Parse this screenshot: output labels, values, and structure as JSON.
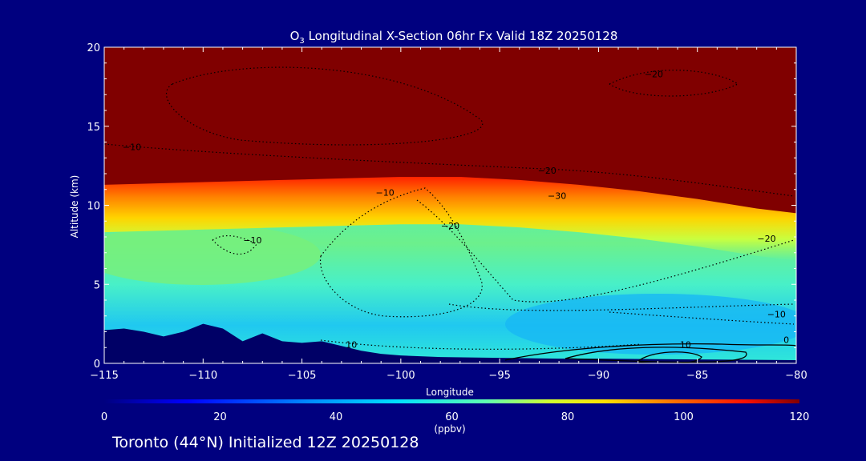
{
  "chart_data": {
    "type": "heatmap",
    "title_prefix": "O",
    "title_subscript": "3",
    "title_suffix": " Longitudinal X-Section 06hr  Fx Valid 18Z 20250128",
    "xlabel": "Longitude",
    "ylabel": "Altitude (km)",
    "xlim": [
      -115,
      -80
    ],
    "ylim": [
      0,
      20
    ],
    "x_ticks": [
      -115,
      -110,
      -105,
      -100,
      -95,
      -90,
      -85,
      -80
    ],
    "x_tick_labels": [
      "−115",
      "−110",
      "−105",
      "−100",
      "−95",
      "−90",
      "−85",
      "−80"
    ],
    "y_ticks": [
      0,
      5,
      10,
      15,
      20
    ],
    "y_tick_labels": [
      "0",
      "5",
      "10",
      "15",
      "20"
    ],
    "colorbar": {
      "label": "(ppbv)",
      "range": [
        0,
        120
      ],
      "ticks": [
        0,
        20,
        40,
        60,
        80,
        100,
        120
      ],
      "tick_labels": [
        "0",
        "20",
        "40",
        "60",
        "80",
        "100",
        "120"
      ]
    },
    "tropopause_km": [
      [
        -115,
        11.3
      ],
      [
        -112,
        11.4
      ],
      [
        -109,
        11.5
      ],
      [
        -106,
        11.6
      ],
      [
        -103,
        11.7
      ],
      [
        -100,
        11.8
      ],
      [
        -97,
        11.8
      ],
      [
        -94,
        11.6
      ],
      [
        -91,
        11.3
      ],
      [
        -88,
        10.9
      ],
      [
        -85,
        10.4
      ],
      [
        -82,
        9.8
      ],
      [
        -80,
        9.5
      ]
    ],
    "terrain_km": [
      [
        -115,
        2.1
      ],
      [
        -114,
        2.2
      ],
      [
        -113,
        2.0
      ],
      [
        -112,
        1.7
      ],
      [
        -111,
        2.0
      ],
      [
        -110,
        2.5
      ],
      [
        -109,
        2.2
      ],
      [
        -108,
        1.4
      ],
      [
        -107,
        1.9
      ],
      [
        -106,
        1.4
      ],
      [
        -105,
        1.3
      ],
      [
        -104,
        1.4
      ],
      [
        -103,
        1.1
      ],
      [
        -102,
        0.8
      ],
      [
        -101,
        0.6
      ],
      [
        -100,
        0.5
      ],
      [
        -98,
        0.4
      ],
      [
        -95,
        0.35
      ],
      [
        -92,
        0.3
      ],
      [
        -90,
        0.3
      ],
      [
        -85,
        0.25
      ],
      [
        -80,
        0.2
      ]
    ],
    "tropospheric_ozone_ppbv": [
      {
        "lon": -115,
        "alt": 7,
        "value": 48
      },
      {
        "lon": -110,
        "alt": 7,
        "value": 48
      },
      {
        "lon": -100,
        "alt": 6,
        "value": 44
      },
      {
        "lon": -90,
        "alt": 6,
        "value": 44
      },
      {
        "lon": -82,
        "alt": 3,
        "value": 38
      }
    ],
    "contour_labels": [
      {
        "text": "−10",
        "lon": -113.6,
        "alt": 13.5
      },
      {
        "text": "−20",
        "lon": -87.2,
        "alt": 18.1
      },
      {
        "text": "−20",
        "lon": -92.6,
        "alt": 12.0
      },
      {
        "text": "−30",
        "lon": -92.1,
        "alt": 10.4
      },
      {
        "text": "−10",
        "lon": -100.8,
        "alt": 10.6
      },
      {
        "text": "−20",
        "lon": -97.5,
        "alt": 8.5
      },
      {
        "text": "−10",
        "lon": -107.5,
        "alt": 7.6
      },
      {
        "text": "−20",
        "lon": -81.5,
        "alt": 7.7
      },
      {
        "text": "−10",
        "lon": -81.0,
        "alt": 2.9
      },
      {
        "text": "0",
        "lon": -80.5,
        "alt": 1.3
      },
      {
        "text": "10",
        "lon": -102.5,
        "alt": 1.0
      },
      {
        "text": "10",
        "lon": -85.6,
        "alt": 1.0
      }
    ]
  },
  "colors": {
    "background": "#00007f",
    "terrain": "#000066",
    "stratosphere": "#800000",
    "text": "#ffffff"
  },
  "footer": "Toronto (44°N) Initialized 12Z 20250128"
}
